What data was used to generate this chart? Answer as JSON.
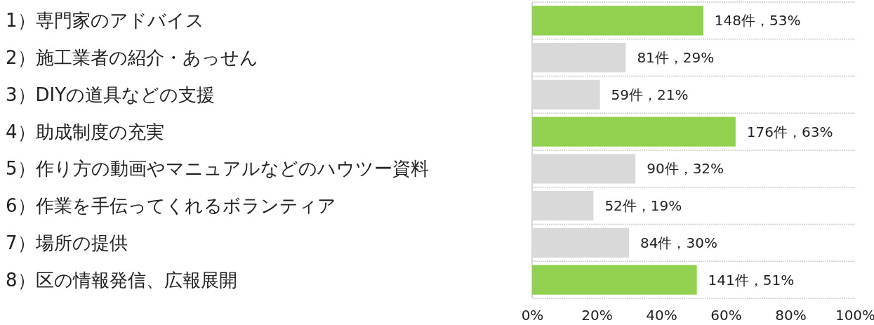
{
  "chart_data": {
    "type": "bar",
    "orientation": "horizontal",
    "categories": [
      "1）専門家のアドバイス",
      "2）施工業者の紹介・あっせん",
      "3）DIYの道具などの支援",
      "4）助成制度の充実",
      "5）作り方の動画やマニュアルなどのハウツー資料",
      "6）作業を手伝ってくれるボランティア",
      "7）場所の提供",
      "8）区の情報発信、広報展開"
    ],
    "values": [
      53,
      29,
      21,
      63,
      32,
      19,
      30,
      51
    ],
    "colors": [
      "#92d050",
      "#d9d9d9",
      "#d9d9d9",
      "#92d050",
      "#d9d9d9",
      "#d9d9d9",
      "#d9d9d9",
      "#92d050"
    ],
    "value_labels": [
      "148件，53%",
      "81件，29%",
      "59件，21%",
      "176件，63%",
      "90件，32%",
      "52件，19%",
      "84件，30%",
      "141件，51%"
    ],
    "xlim": [
      0,
      100
    ],
    "xticks": [
      {
        "value": 0,
        "label": "0%"
      },
      {
        "value": 20,
        "label": "20%"
      },
      {
        "value": 40,
        "label": "40%"
      },
      {
        "value": 60,
        "label": "60%"
      },
      {
        "value": 80,
        "label": "80%"
      },
      {
        "value": 100,
        "label": "100%"
      }
    ],
    "grid": "y"
  }
}
